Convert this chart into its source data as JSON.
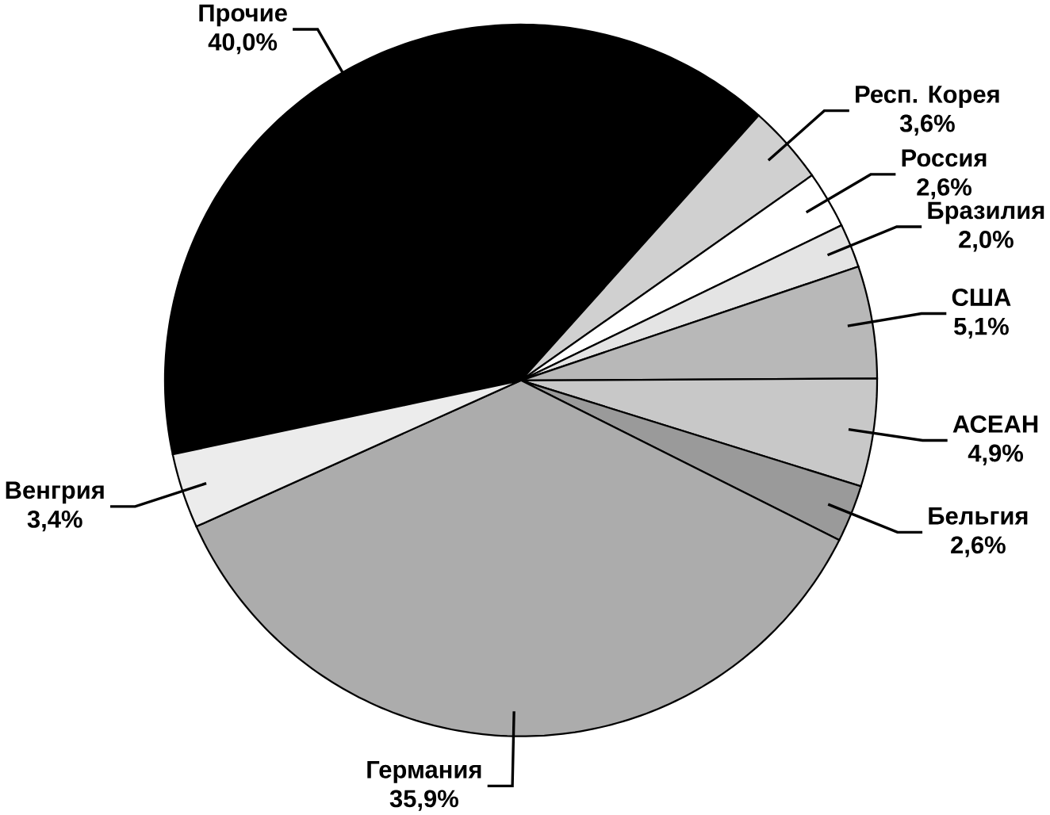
{
  "chart_data": {
    "type": "pie",
    "categories": [
      "Прочие",
      "Респ. Корея",
      "Россия",
      "Бразилия",
      "США",
      "АСЕАН",
      "Бельгия",
      "Германия",
      "Венгрия"
    ],
    "values": [
      40.0,
      3.6,
      2.6,
      2.0,
      5.1,
      4.9,
      2.6,
      35.9,
      3.4
    ],
    "value_labels": [
      "40,0%",
      "3,6%",
      "2,6%",
      "2,0%",
      "5,1%",
      "4,9%",
      "2,6%",
      "35,9%",
      "3,4%"
    ],
    "colors": [
      "#000000",
      "#d0d0d0",
      "#ffffff",
      "#e4e4e4",
      "#b8b8b8",
      "#c8c8c8",
      "#9a9a9a",
      "#acacac",
      "#ececec"
    ]
  }
}
